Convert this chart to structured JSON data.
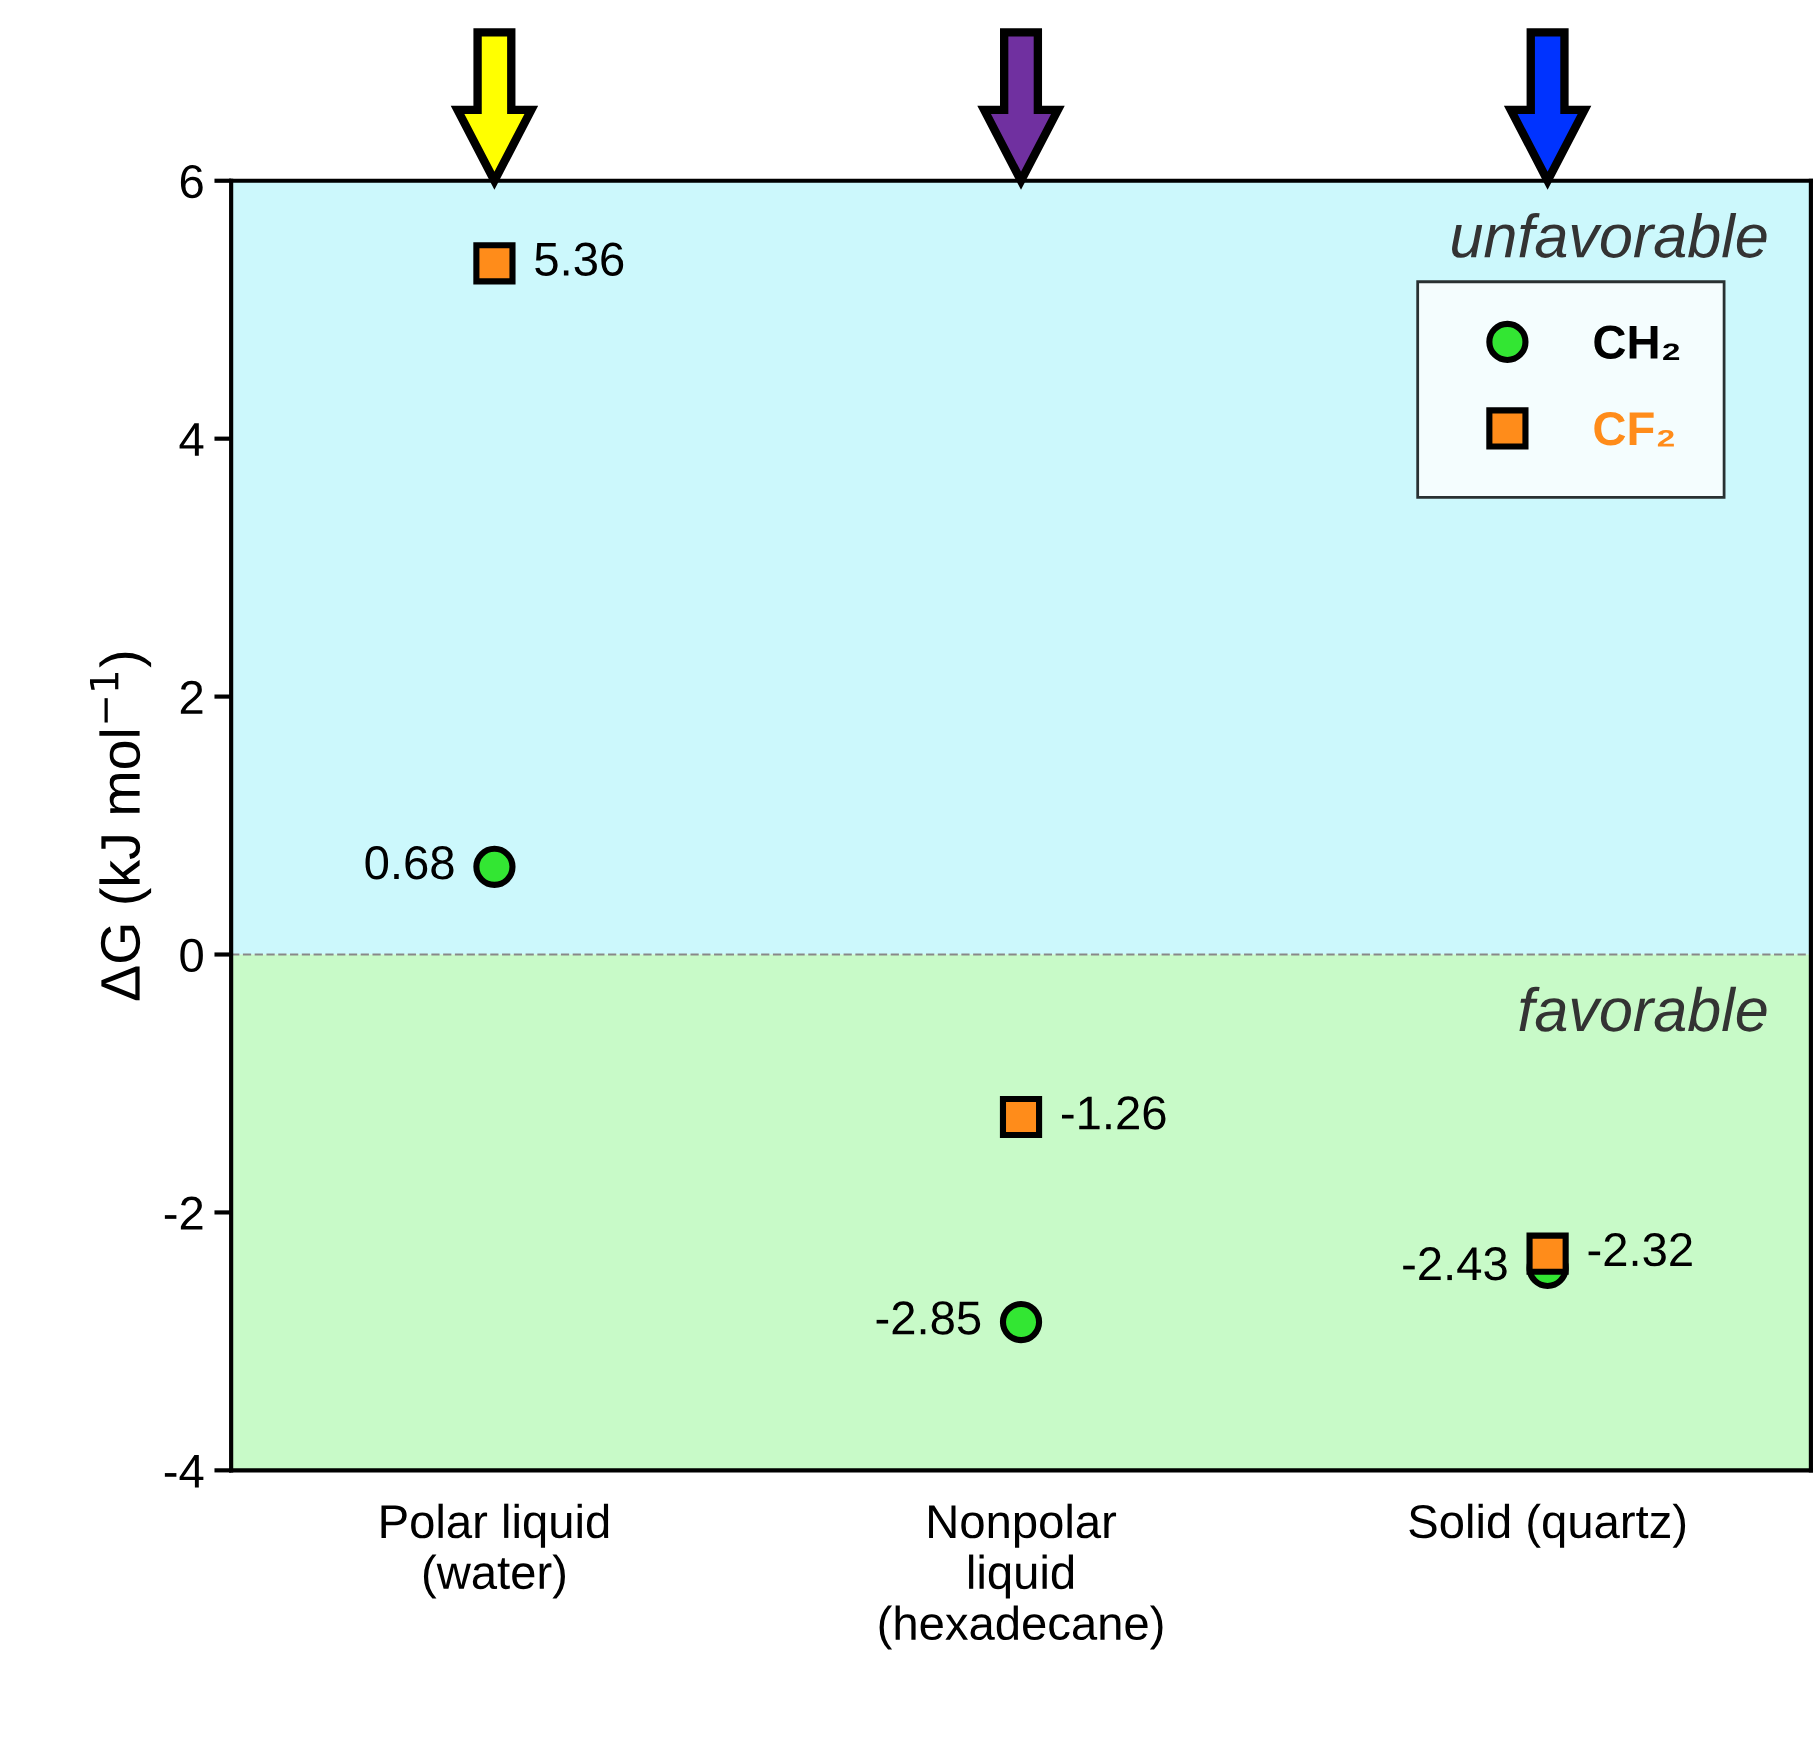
{
  "chart_data": {
    "type": "scatter",
    "ylabel": "ΔG (kJ mol$^{−1}$)",
    "categories": [
      "Polar liquid\n(water)",
      "Nonpolar\nliquid\n(hexadecane)",
      "Solid (quartz)"
    ],
    "series": [
      {
        "name": "CH₂",
        "color": "#33e633",
        "marker": "circle",
        "values": [
          0.68,
          -2.85,
          -2.43
        ]
      },
      {
        "name": "CF₂",
        "color": "#ff8c1a",
        "marker": "square",
        "values": [
          5.36,
          -1.26,
          -2.32
        ]
      }
    ],
    "ylim": [
      -4,
      6
    ],
    "yticks": [
      -4,
      -2,
      0,
      2,
      4,
      6
    ],
    "bands": [
      {
        "axis": "y",
        "from": 0,
        "to": 6,
        "label": "unfavorable",
        "color": "#ccf8fc"
      },
      {
        "axis": "y",
        "from": -4,
        "to": 0,
        "label": "favorable",
        "color": "#c8fac8"
      }
    ],
    "ref_lines": [
      {
        "axis": "y",
        "value": 0,
        "color": "#888888",
        "line_style": "dashed"
      }
    ],
    "data_labels": true,
    "legend": "top right",
    "grid": false
  }
}
